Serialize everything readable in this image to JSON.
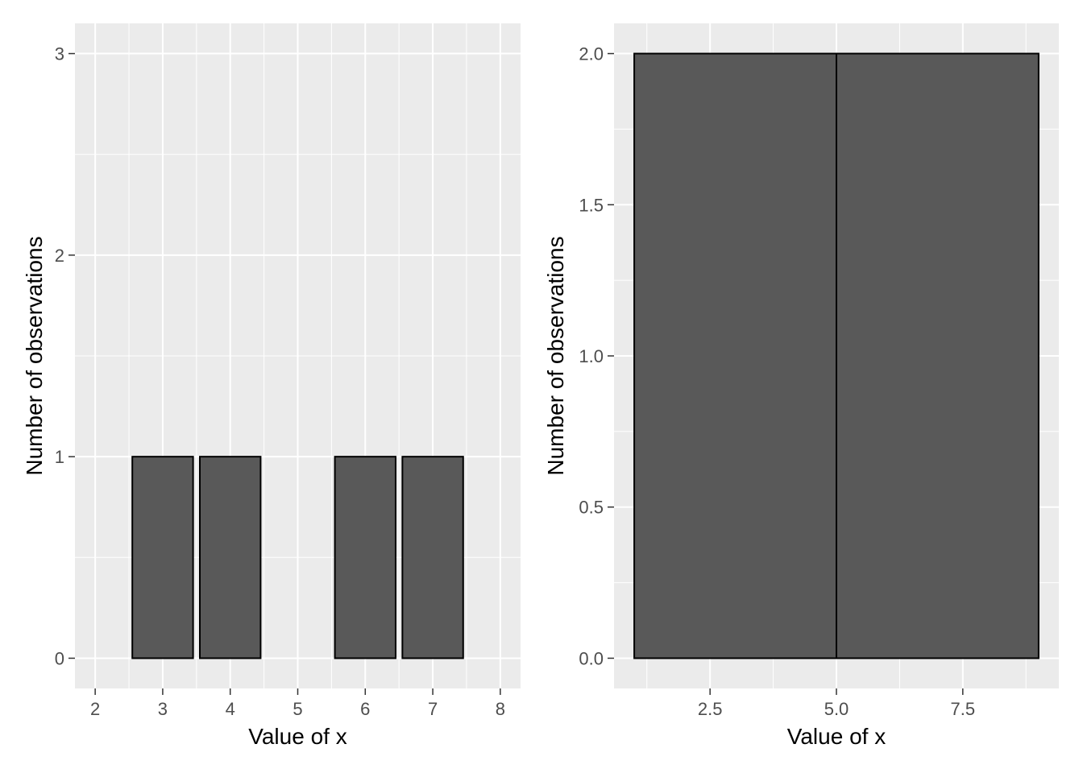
{
  "chart_data": [
    {
      "type": "bar",
      "xlabel": "Value of x",
      "ylabel": "Number of observations",
      "x": [
        3,
        4,
        6,
        7
      ],
      "values": [
        1,
        1,
        1,
        1
      ],
      "bar_width": 0.9,
      "xlim": [
        1.7,
        8.3
      ],
      "ylim": [
        -0.15,
        3.15
      ],
      "x_ticks": [
        2,
        3,
        4,
        5,
        6,
        7,
        8
      ],
      "x_tick_labels": [
        "2",
        "3",
        "4",
        "5",
        "6",
        "7",
        "8"
      ],
      "y_ticks": [
        0,
        1,
        2,
        3
      ],
      "y_tick_labels": [
        "0",
        "1",
        "2",
        "3"
      ],
      "y_minor_ticks": [
        0.5,
        1.5,
        2.5
      ],
      "x_minor_ticks": [
        2.5,
        3.5,
        4.5,
        5.5,
        6.5,
        7.5
      ],
      "bar_fill": "#595959",
      "bar_outline": "#000000",
      "panel_background": "#EBEBEB",
      "grid": true,
      "legend": "none"
    },
    {
      "type": "bar",
      "xlabel": "Value of x",
      "ylabel": "Number of observations",
      "bins": [
        {
          "start": 1,
          "end": 5,
          "count": 2
        },
        {
          "start": 5,
          "end": 9,
          "count": 2
        }
      ],
      "xlim": [
        0.6,
        9.4
      ],
      "ylim": [
        -0.1,
        2.1
      ],
      "x_ticks": [
        2.5,
        5.0,
        7.5
      ],
      "x_tick_labels": [
        "2.5",
        "5.0",
        "7.5"
      ],
      "y_ticks": [
        0.0,
        0.5,
        1.0,
        1.5,
        2.0
      ],
      "y_tick_labels": [
        "0.0",
        "0.5",
        "1.0",
        "1.5",
        "2.0"
      ],
      "y_minor_ticks": [
        0.25,
        0.75,
        1.25,
        1.75
      ],
      "x_minor_ticks": [
        1.25,
        3.75,
        6.25,
        8.75
      ],
      "bar_fill": "#595959",
      "bar_outline": "#000000",
      "panel_background": "#EBEBEB",
      "grid": true,
      "legend": "none"
    }
  ]
}
